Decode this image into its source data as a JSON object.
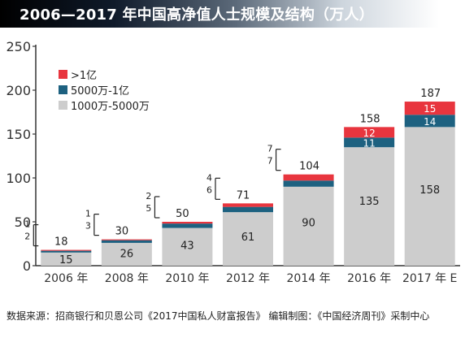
{
  "header": {
    "title": "2006—2017 年中国高净值人士规模及结构（万人）"
  },
  "footer": {
    "source": "数据来源：招商银行和贝恩公司《2017中国私人财富报告》   编辑制图：《中国经济周刊》采制中心"
  },
  "colors": {
    "red": "#e8353e",
    "blue": "#1d6180",
    "gray": "#cdcdcd",
    "title_bg": "#0b1620"
  },
  "chart_data": {
    "type": "bar",
    "stacked": true,
    "categories": [
      "2006 年",
      "2008 年",
      "2010 年",
      "2012 年",
      "2014 年",
      "2016 年",
      "2017 年 E"
    ],
    "series": [
      {
        "name": "1000万-5000万",
        "color": "#cdcdcd",
        "values": [
          15,
          26,
          43,
          61,
          90,
          135,
          158
        ]
      },
      {
        "name": "5000万-1亿",
        "color": "#1d6180",
        "values": [
          2,
          3,
          5,
          6,
          7,
          11,
          14
        ]
      },
      {
        "name": ">1亿",
        "color": "#e8353e",
        "values": [
          1,
          1,
          2,
          4,
          7,
          12,
          15
        ]
      }
    ],
    "totals": [
      "18",
      "30",
      "50",
      "71",
      "104",
      "158",
      "187"
    ],
    "ylim": [
      0,
      250
    ],
    "yticks": [
      "0",
      "50",
      "100",
      "150",
      "200",
      "250"
    ],
    "grid": false,
    "legend_position": "top-left"
  }
}
